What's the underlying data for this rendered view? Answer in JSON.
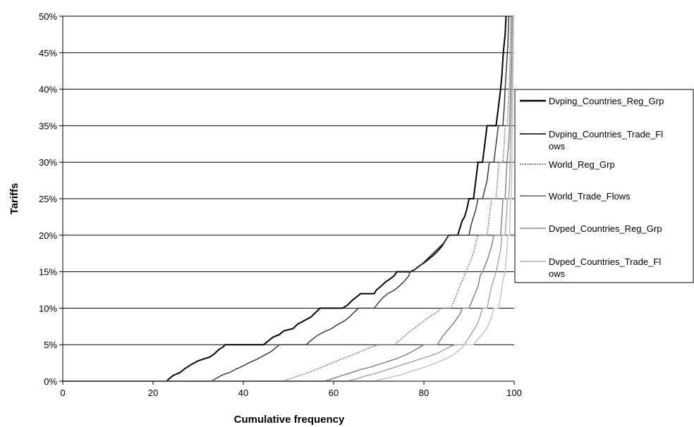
{
  "chart_data": {
    "type": "line",
    "xlabel": "Cumulative frequency",
    "ylabel": "Tariffs",
    "xlim": [
      0,
      100
    ],
    "ylim": [
      0,
      50
    ],
    "x_ticks": [
      0,
      20,
      40,
      60,
      80,
      100
    ],
    "x_tick_labels": [
      "0",
      "20",
      "40",
      "60",
      "80",
      "100"
    ],
    "y_ticks": [
      0,
      5,
      10,
      15,
      20,
      25,
      30,
      35,
      40,
      45,
      50
    ],
    "y_tick_labels": [
      "0%",
      "5%",
      "10%",
      "15%",
      "20%",
      "25%",
      "30%",
      "35%",
      "40%",
      "45%",
      "50%"
    ],
    "grid": "horizontal",
    "legend_position": "right",
    "series": [
      {
        "name": "Dvping_Countries_Reg_Grp",
        "color": "#000000",
        "legend_lines": [
          "Dvping_Countries_Reg_Grp"
        ],
        "points": [
          [
            0,
            0
          ],
          [
            23,
            0
          ],
          [
            23.5,
            0.3
          ],
          [
            24.5,
            0.8
          ],
          [
            26,
            1.2
          ],
          [
            27,
            1.7
          ],
          [
            28.5,
            2.3
          ],
          [
            30,
            2.8
          ],
          [
            31,
            3
          ],
          [
            32.5,
            3.3
          ],
          [
            33.5,
            3.7
          ],
          [
            34.5,
            4.3
          ],
          [
            35.5,
            4.7
          ],
          [
            36,
            5
          ],
          [
            44.5,
            5
          ],
          [
            45.5,
            5.5
          ],
          [
            46.5,
            6
          ],
          [
            48,
            6.4
          ],
          [
            49,
            6.9
          ],
          [
            51,
            7.2
          ],
          [
            52,
            7.8
          ],
          [
            53.5,
            8.3
          ],
          [
            55,
            8.8
          ],
          [
            56,
            9.4
          ],
          [
            57,
            10
          ],
          [
            62,
            10
          ],
          [
            63,
            10.4
          ],
          [
            64,
            11
          ],
          [
            65,
            11.5
          ],
          [
            66,
            12
          ],
          [
            69,
            12
          ],
          [
            69.5,
            12.5
          ],
          [
            70.5,
            13
          ],
          [
            71.5,
            13.6
          ],
          [
            72.5,
            14
          ],
          [
            73.5,
            14.5
          ],
          [
            74,
            15
          ],
          [
            77,
            15
          ],
          [
            78,
            15.3
          ],
          [
            79,
            15.8
          ],
          [
            80,
            16.2
          ],
          [
            81,
            16.7
          ],
          [
            82,
            17.2
          ],
          [
            83,
            17.8
          ],
          [
            84,
            18.5
          ],
          [
            84.5,
            19
          ],
          [
            85,
            19.5
          ],
          [
            85.5,
            20
          ],
          [
            87.5,
            20
          ],
          [
            88,
            21
          ],
          [
            88.5,
            22
          ],
          [
            89,
            22.5
          ],
          [
            89.5,
            23.5
          ],
          [
            90,
            25
          ],
          [
            91,
            25
          ],
          [
            91.5,
            27.5
          ],
          [
            92,
            30
          ],
          [
            93,
            30
          ],
          [
            93.5,
            32.5
          ],
          [
            94,
            35
          ],
          [
            96,
            35
          ],
          [
            96.5,
            37.5
          ],
          [
            97,
            40
          ],
          [
            97.3,
            42
          ],
          [
            97.6,
            45
          ],
          [
            98,
            47.5
          ],
          [
            98.2,
            50
          ]
        ]
      },
      {
        "name": "Dvping_Countries_Trade_Flows",
        "color": "#3c3c3c",
        "legend_lines": [
          "Dvping_Countries_Trade_Fl",
          "ows"
        ],
        "points": [
          [
            0,
            0
          ],
          [
            33,
            0
          ],
          [
            34,
            0.4
          ],
          [
            35.5,
            0.9
          ],
          [
            37,
            1.2
          ],
          [
            38.5,
            1.7
          ],
          [
            40,
            2.1
          ],
          [
            41.5,
            2.6
          ],
          [
            43,
            3
          ],
          [
            44.5,
            3.5
          ],
          [
            46,
            4
          ],
          [
            47,
            4.5
          ],
          [
            48,
            5
          ],
          [
            54,
            5
          ],
          [
            55,
            5.6
          ],
          [
            56.5,
            6.3
          ],
          [
            58,
            6.8
          ],
          [
            59.5,
            7.2
          ],
          [
            61,
            7.8
          ],
          [
            62.5,
            8.3
          ],
          [
            63.5,
            8.8
          ],
          [
            64.5,
            9.4
          ],
          [
            65.5,
            10
          ],
          [
            69,
            10
          ],
          [
            70,
            10.8
          ],
          [
            71,
            11.5
          ],
          [
            72,
            12
          ],
          [
            73.5,
            12.5
          ],
          [
            74.5,
            13
          ],
          [
            75.5,
            13.6
          ],
          [
            76.5,
            14.3
          ],
          [
            77,
            15
          ],
          [
            78.5,
            15.5
          ],
          [
            79.5,
            16
          ],
          [
            80.5,
            16.6
          ],
          [
            81.5,
            17.2
          ],
          [
            82.5,
            17.8
          ],
          [
            83.5,
            18.4
          ],
          [
            84.5,
            19
          ],
          [
            85.5,
            20
          ],
          [
            90,
            20
          ],
          [
            90.5,
            21.5
          ],
          [
            91,
            22.5
          ],
          [
            91.5,
            23.5
          ],
          [
            92,
            25
          ],
          [
            93,
            25
          ],
          [
            94,
            27.5
          ],
          [
            94.5,
            30
          ],
          [
            95.5,
            30
          ],
          [
            96,
            32.5
          ],
          [
            96.5,
            35
          ],
          [
            97.5,
            35
          ],
          [
            97.8,
            37.5
          ],
          [
            98,
            40
          ],
          [
            98.3,
            43
          ],
          [
            98.6,
            46
          ],
          [
            98.8,
            50
          ]
        ]
      },
      {
        "name": "World_Reg_Grp",
        "color": "#808080",
        "dashed": true,
        "legend_lines": [
          "World_Reg_Grp"
        ],
        "points": [
          [
            0,
            0
          ],
          [
            49,
            0
          ],
          [
            50.5,
            0.4
          ],
          [
            52.5,
            0.8
          ],
          [
            54.5,
            1.2
          ],
          [
            56.5,
            1.7
          ],
          [
            58.5,
            2.2
          ],
          [
            60.5,
            2.7
          ],
          [
            62.5,
            3.2
          ],
          [
            64.5,
            3.7
          ],
          [
            66.5,
            4.2
          ],
          [
            68,
            4.6
          ],
          [
            70,
            5
          ],
          [
            73.5,
            5
          ],
          [
            75,
            5.8
          ],
          [
            76.5,
            6.6
          ],
          [
            78,
            7.3
          ],
          [
            79.5,
            8
          ],
          [
            81,
            8.7
          ],
          [
            82.5,
            9.3
          ],
          [
            84,
            10
          ],
          [
            86,
            10
          ],
          [
            87,
            11.5
          ],
          [
            88,
            13
          ],
          [
            89,
            14.5
          ],
          [
            90,
            16
          ],
          [
            91,
            17.5
          ],
          [
            91.5,
            19
          ],
          [
            92,
            20
          ],
          [
            94,
            20
          ],
          [
            94.5,
            22.5
          ],
          [
            95,
            25
          ],
          [
            96,
            25
          ],
          [
            96.3,
            27.5
          ],
          [
            96.6,
            30
          ],
          [
            97.5,
            30
          ],
          [
            97.8,
            32.5
          ],
          [
            98,
            35
          ],
          [
            98.5,
            35
          ],
          [
            98.7,
            38
          ],
          [
            98.9,
            40
          ],
          [
            99.1,
            45
          ],
          [
            99.2,
            50
          ]
        ]
      },
      {
        "name": "World_Trade_Flows",
        "color": "#858585",
        "legend_lines": [
          "World_Trade_Flows"
        ],
        "points": [
          [
            0,
            0
          ],
          [
            58,
            0
          ],
          [
            60,
            0.4
          ],
          [
            62,
            0.8
          ],
          [
            64,
            1.2
          ],
          [
            66,
            1.6
          ],
          [
            68,
            1.9
          ],
          [
            70,
            2.3
          ],
          [
            72,
            2.7
          ],
          [
            74,
            3.1
          ],
          [
            76,
            3.6
          ],
          [
            77.5,
            4.1
          ],
          [
            79,
            4.6
          ],
          [
            80,
            5
          ],
          [
            83,
            5
          ],
          [
            84,
            6
          ],
          [
            85,
            6.8
          ],
          [
            86,
            7.5
          ],
          [
            87,
            8.3
          ],
          [
            88,
            9.2
          ],
          [
            88.5,
            10
          ],
          [
            90,
            10
          ],
          [
            91,
            11.5
          ],
          [
            92,
            13
          ],
          [
            92.5,
            14.5
          ],
          [
            93,
            15
          ],
          [
            94,
            16.5
          ],
          [
            95,
            18.5
          ],
          [
            95.5,
            20
          ],
          [
            97,
            20
          ],
          [
            97.3,
            22.5
          ],
          [
            97.5,
            25
          ],
          [
            98,
            25
          ],
          [
            98.2,
            27.5
          ],
          [
            98.4,
            30
          ],
          [
            98.8,
            32.5
          ],
          [
            99,
            35
          ],
          [
            99.2,
            40
          ],
          [
            99.4,
            45
          ],
          [
            99.5,
            50
          ]
        ]
      },
      {
        "name": "Dvped_Countries_Reg_Grp",
        "color": "#a8a8a8",
        "legend_lines": [
          "Dvped_Countries_Reg_Grp"
        ],
        "points": [
          [
            0,
            0
          ],
          [
            63,
            0
          ],
          [
            65,
            0.3
          ],
          [
            67,
            0.7
          ],
          [
            69,
            1
          ],
          [
            71,
            1.4
          ],
          [
            73,
            1.8
          ],
          [
            75,
            2.2
          ],
          [
            77,
            2.6
          ],
          [
            79,
            3
          ],
          [
            81,
            3.4
          ],
          [
            83,
            3.8
          ],
          [
            84.5,
            4.3
          ],
          [
            86,
            4.8
          ],
          [
            87,
            5
          ],
          [
            89,
            5
          ],
          [
            90,
            6
          ],
          [
            91,
            7
          ],
          [
            92,
            8
          ],
          [
            92.5,
            9
          ],
          [
            93,
            10
          ],
          [
            94,
            10
          ],
          [
            94.5,
            11.5
          ],
          [
            95,
            13
          ],
          [
            95.5,
            14
          ],
          [
            96,
            15
          ],
          [
            96.5,
            16.5
          ],
          [
            97,
            18
          ],
          [
            97.3,
            20
          ],
          [
            98,
            20
          ],
          [
            98.3,
            22.5
          ],
          [
            98.5,
            25
          ],
          [
            98.8,
            25
          ],
          [
            99,
            27.5
          ],
          [
            99.1,
            30
          ],
          [
            99.3,
            35
          ],
          [
            99.5,
            40
          ],
          [
            99.6,
            45
          ],
          [
            99.7,
            50
          ]
        ]
      },
      {
        "name": "Dvped_Countries_Trade_Flows",
        "color": "#c4c4c4",
        "legend_lines": [
          "Dvped_Countries_Trade_Fl",
          "ows"
        ],
        "points": [
          [
            0,
            0
          ],
          [
            69,
            0
          ],
          [
            71,
            0.3
          ],
          [
            73,
            0.6
          ],
          [
            75,
            0.9
          ],
          [
            77,
            1.3
          ],
          [
            79,
            1.7
          ],
          [
            81,
            2.1
          ],
          [
            83,
            2.6
          ],
          [
            85,
            3.1
          ],
          [
            86.5,
            3.6
          ],
          [
            87.5,
            4.1
          ],
          [
            88.5,
            4.6
          ],
          [
            89,
            5
          ],
          [
            91,
            5
          ],
          [
            92,
            5.8
          ],
          [
            93,
            6.5
          ],
          [
            94,
            7.3
          ],
          [
            94.5,
            8
          ],
          [
            95,
            8.8
          ],
          [
            95.5,
            10
          ],
          [
            96.5,
            10
          ],
          [
            97,
            11.5
          ],
          [
            97.3,
            13
          ],
          [
            97.6,
            14
          ],
          [
            98,
            15
          ],
          [
            98.2,
            16.5
          ],
          [
            98.4,
            18
          ],
          [
            98.6,
            20
          ],
          [
            99,
            20
          ],
          [
            99.1,
            22.5
          ],
          [
            99.2,
            25
          ],
          [
            99.4,
            25
          ],
          [
            99.5,
            30
          ],
          [
            99.6,
            35
          ],
          [
            99.7,
            40
          ],
          [
            99.8,
            45
          ],
          [
            99.9,
            50
          ]
        ]
      }
    ]
  }
}
